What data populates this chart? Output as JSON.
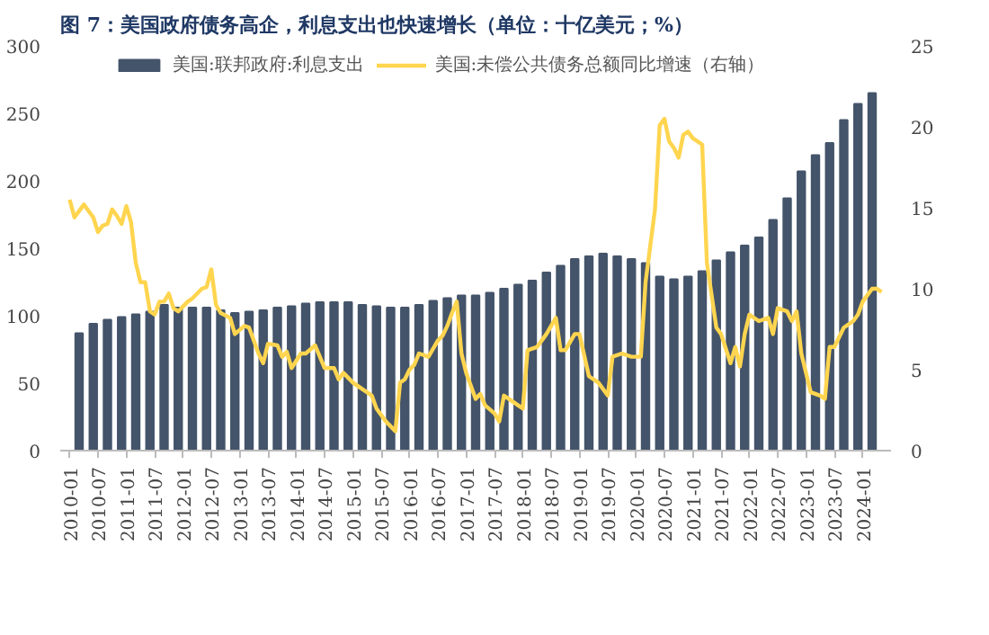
{
  "chart_data": {
    "type": "bar",
    "title": "图 7：美国政府债务高企，利息支出也快速增长（单位：十亿美元；%）",
    "legend": "top",
    "grid": false,
    "xlim": [
      "2009-11",
      "2024-07"
    ],
    "xticks": [
      "2010-01",
      "2010-07",
      "2011-01",
      "2011-07",
      "2012-01",
      "2012-07",
      "2013-01",
      "2013-07",
      "2014-01",
      "2014-07",
      "2015-01",
      "2015-07",
      "2016-01",
      "2016-07",
      "2017-01",
      "2017-07",
      "2018-01",
      "2018-07",
      "2019-01",
      "2019-07",
      "2020-01",
      "2020-07",
      "2021-01",
      "2021-07",
      "2022-01",
      "2022-07",
      "2023-01",
      "2023-07",
      "2024-01"
    ],
    "ylim": [
      0,
      300
    ],
    "yticks": [
      0,
      50,
      100,
      150,
      200,
      250,
      300
    ],
    "y2lim": [
      0,
      25
    ],
    "y2ticks": [
      0,
      5,
      10,
      15,
      20,
      25
    ],
    "series": [
      {
        "name": "美国:联邦政府:利息支出",
        "type": "bar",
        "color": "#44546a",
        "x": [
          "2010-03",
          "2010-06",
          "2010-09",
          "2010-12",
          "2011-03",
          "2011-06",
          "2011-09",
          "2011-12",
          "2012-03",
          "2012-06",
          "2012-09",
          "2012-12",
          "2013-03",
          "2013-06",
          "2013-09",
          "2013-12",
          "2014-03",
          "2014-06",
          "2014-09",
          "2014-12",
          "2015-03",
          "2015-06",
          "2015-09",
          "2015-12",
          "2016-03",
          "2016-06",
          "2016-09",
          "2016-12",
          "2017-03",
          "2017-06",
          "2017-09",
          "2017-12",
          "2018-03",
          "2018-06",
          "2018-09",
          "2018-12",
          "2019-03",
          "2019-06",
          "2019-09",
          "2019-12",
          "2020-03",
          "2020-06",
          "2020-09",
          "2020-12",
          "2021-03",
          "2021-06",
          "2021-09",
          "2021-12",
          "2022-03",
          "2022-06",
          "2022-09",
          "2022-12",
          "2023-03",
          "2023-06",
          "2023-09",
          "2023-12",
          "2024-03"
        ],
        "values": [
          87,
          94,
          97,
          99,
          101,
          103,
          108,
          106,
          106,
          106,
          104,
          102,
          103,
          104,
          106,
          107,
          109,
          110,
          110,
          110,
          108,
          107,
          106,
          106,
          108,
          111,
          113,
          115,
          115,
          117,
          120,
          123,
          126,
          132,
          137,
          142,
          144,
          146,
          144,
          142,
          139,
          129,
          127,
          129,
          133,
          141,
          147,
          152,
          158,
          171,
          187,
          207,
          219,
          228,
          245,
          257,
          265
        ]
      },
      {
        "name": "美国:未偿公共债务总额同比增速（右轴）",
        "type": "line",
        "axis": "y2",
        "color": "#ffd54f",
        "x": [
          "2010-01",
          "2010-02",
          "2010-04",
          "2010-06",
          "2010-07",
          "2010-08",
          "2010-09",
          "2010-10",
          "2010-11",
          "2010-12",
          "2011-01",
          "2011-02",
          "2011-03",
          "2011-04",
          "2011-05",
          "2011-06",
          "2011-07",
          "2011-08",
          "2011-09",
          "2011-10",
          "2011-11",
          "2011-12",
          "2012-02",
          "2012-03",
          "2012-05",
          "2012-06",
          "2012-07",
          "2012-08",
          "2012-09",
          "2012-11",
          "2012-12",
          "2013-02",
          "2013-03",
          "2013-04",
          "2013-05",
          "2013-06",
          "2013-07",
          "2013-09",
          "2013-10",
          "2013-11",
          "2013-12",
          "2014-02",
          "2014-03",
          "2014-05",
          "2014-07",
          "2014-09",
          "2014-10",
          "2014-11",
          "2015-01",
          "2015-03",
          "2015-05",
          "2015-06",
          "2015-08",
          "2015-10",
          "2015-11",
          "2015-12",
          "2016-01",
          "2016-02",
          "2016-03",
          "2016-05",
          "2016-06",
          "2016-07",
          "2016-08",
          "2016-09",
          "2016-10",
          "2016-11",
          "2016-12",
          "2017-01",
          "2017-02",
          "2017-03",
          "2017-04",
          "2017-05",
          "2017-07",
          "2017-08",
          "2017-09",
          "2017-10",
          "2017-12",
          "2018-01",
          "2018-02",
          "2018-04",
          "2018-05",
          "2018-06",
          "2018-08",
          "2018-09",
          "2018-10",
          "2018-12",
          "2019-01",
          "2019-03",
          "2019-05",
          "2019-07",
          "2019-08",
          "2019-10",
          "2019-12",
          "2020-02",
          "2020-03",
          "2020-05",
          "2020-06",
          "2020-07",
          "2020-08",
          "2020-09",
          "2020-10",
          "2020-11",
          "2020-12",
          "2021-01",
          "2021-03",
          "2021-04",
          "2021-06",
          "2021-07",
          "2021-09",
          "2021-10",
          "2021-11",
          "2021-12",
          "2022-01",
          "2022-03",
          "2022-05",
          "2022-06",
          "2022-07",
          "2022-09",
          "2022-10",
          "2022-11",
          "2022-12",
          "2023-02",
          "2023-04",
          "2023-05",
          "2023-06",
          "2023-07",
          "2023-09",
          "2023-11",
          "2023-12",
          "2024-01",
          "2024-03",
          "2024-04",
          "2024-05"
        ],
        "values": [
          15.5,
          14.4,
          15.2,
          14.4,
          13.5,
          13.9,
          14.0,
          14.9,
          14.5,
          14.0,
          15.1,
          14.1,
          11.6,
          10.4,
          10.4,
          8.6,
          8.4,
          9.2,
          9.2,
          9.7,
          8.8,
          8.6,
          9.2,
          9.4,
          10.0,
          10.1,
          11.2,
          9.0,
          8.5,
          8.2,
          7.2,
          7.7,
          7.6,
          6.8,
          6.0,
          5.4,
          6.6,
          6.5,
          5.8,
          6.1,
          5.1,
          6.0,
          6.0,
          6.5,
          5.1,
          5.1,
          4.4,
          4.8,
          4.2,
          3.8,
          3.4,
          2.6,
          1.8,
          1.2,
          4.2,
          4.4,
          5.0,
          5.3,
          6.0,
          5.8,
          6.3,
          6.8,
          7.1,
          7.7,
          8.5,
          9.2,
          6.0,
          4.8,
          4.0,
          3.2,
          3.5,
          2.8,
          2.3,
          1.8,
          3.4,
          3.2,
          2.8,
          2.6,
          6.2,
          6.4,
          6.8,
          7.2,
          8.2,
          6.2,
          6.2,
          7.2,
          7.2,
          4.6,
          4.2,
          3.4,
          5.8,
          6.0,
          5.8,
          5.8,
          10.4,
          14.9,
          20.1,
          20.5,
          19.1,
          18.7,
          18.1,
          19.5,
          19.7,
          19.3,
          18.9,
          11.6,
          7.6,
          7.2,
          5.4,
          6.4,
          5.2,
          7.2,
          8.4,
          8.0,
          8.2,
          7.2,
          8.8,
          8.6,
          8.0,
          8.6,
          6.0,
          3.6,
          3.4,
          3.2,
          6.4,
          6.4,
          7.6,
          8.0,
          8.4,
          9.2,
          10.0,
          10.0,
          9.8
        ]
      }
    ]
  }
}
